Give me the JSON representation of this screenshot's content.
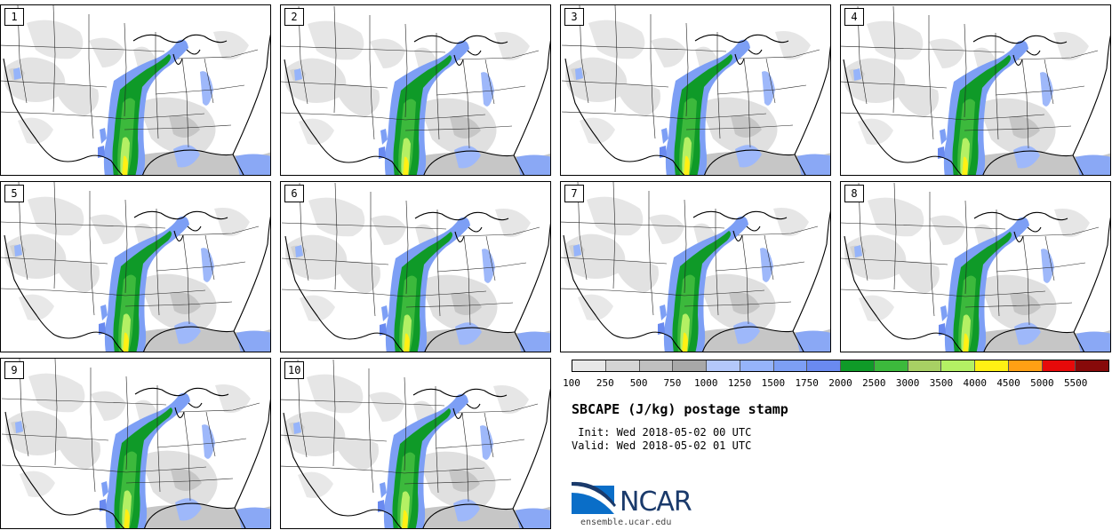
{
  "panels": [
    {
      "label": "1"
    },
    {
      "label": "2"
    },
    {
      "label": "3"
    },
    {
      "label": "4"
    },
    {
      "label": "5"
    },
    {
      "label": "6"
    },
    {
      "label": "7"
    },
    {
      "label": "8"
    },
    {
      "label": "9"
    },
    {
      "label": "10"
    }
  ],
  "colorbar": {
    "colors": [
      "#e8e8e8",
      "#d4d4d4",
      "#c0c0c0",
      "#a8a8a8",
      "#b4c8fa",
      "#96b4fa",
      "#7d9ff5",
      "#6a8af0",
      "#0f9a28",
      "#3cb93c",
      "#a8d064",
      "#b4f064",
      "#fff014",
      "#ffa014",
      "#e60a0a",
      "#870a0a"
    ],
    "labels": [
      "100",
      "250",
      "500",
      "750",
      "1000",
      "1250",
      "1500",
      "1750",
      "2000",
      "2500",
      "3000",
      "3500",
      "4000",
      "4500",
      "5000",
      "5500"
    ]
  },
  "title": "SBCAPE (J/kg) postage stamp",
  "init": " Init: Wed 2018-05-02 00 UTC",
  "valid": "Valid: Wed 2018-05-02 01 UTC",
  "logo": {
    "text": "NCAR",
    "site": "ensemble.ucar.edu"
  }
}
